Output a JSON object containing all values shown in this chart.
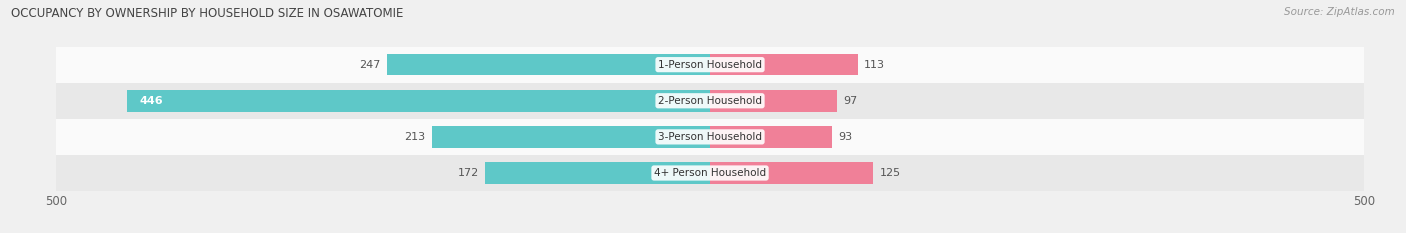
{
  "title": "OCCUPANCY BY OWNERSHIP BY HOUSEHOLD SIZE IN OSAWATOMIE",
  "source": "Source: ZipAtlas.com",
  "categories": [
    "1-Person Household",
    "2-Person Household",
    "3-Person Household",
    "4+ Person Household"
  ],
  "owner_values": [
    247,
    446,
    213,
    172
  ],
  "renter_values": [
    113,
    97,
    93,
    125
  ],
  "owner_color": "#5ec8c8",
  "renter_color": "#f08098",
  "axis_max": 500,
  "axis_min": -500,
  "bar_height": 0.6,
  "background_color": "#f0f0f0",
  "row_bg_colors": [
    "#fafafa",
    "#e8e8e8",
    "#fafafa",
    "#e8e8e8"
  ],
  "label_color": "#555555",
  "title_color": "#444444"
}
